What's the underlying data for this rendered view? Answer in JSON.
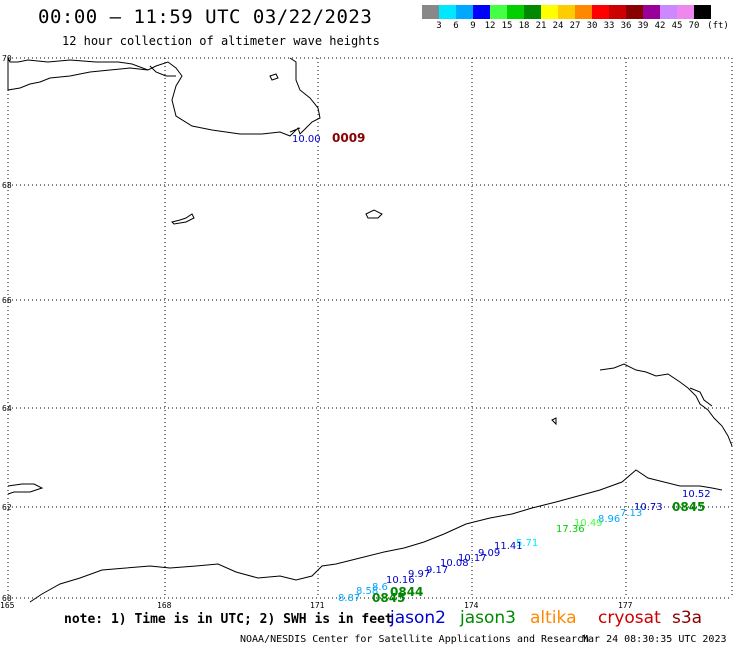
{
  "header": {
    "title": "00:00 – 11:59 UTC 03/22/2023",
    "subtitle": "12 hour collection of altimeter wave heights"
  },
  "legend": {
    "unit": "(ft)",
    "bins": [
      {
        "label": "3",
        "color": "#888888"
      },
      {
        "label": "6",
        "color": "#00e8ff"
      },
      {
        "label": "9",
        "color": "#00a8ff"
      },
      {
        "label": "12",
        "color": "#0000ff"
      },
      {
        "label": "15",
        "color": "#44ff44"
      },
      {
        "label": "18",
        "color": "#00d000"
      },
      {
        "label": "21",
        "color": "#008800"
      },
      {
        "label": "24",
        "color": "#ffff00"
      },
      {
        "label": "27",
        "color": "#ffcc00"
      },
      {
        "label": "30",
        "color": "#ff8800"
      },
      {
        "label": "33",
        "color": "#ff0000"
      },
      {
        "label": "36",
        "color": "#cc0000"
      },
      {
        "label": "39",
        "color": "#880000"
      },
      {
        "label": "42",
        "color": "#990099"
      },
      {
        "label": "45",
        "color": "#cc88ff"
      },
      {
        "label": "70",
        "color": "#ee88ee"
      },
      {
        "label": "",
        "color": "#000000"
      }
    ]
  },
  "map": {
    "lat_labels": [
      "70",
      "68",
      "66",
      "64",
      "62",
      "60"
    ],
    "lon_labels": [
      "165",
      "168",
      "171",
      "174",
      "177"
    ],
    "observations": [
      {
        "text": "10.00",
        "color": "#0000cc"
      },
      {
        "text": "0009",
        "color": "#880000"
      },
      {
        "text": "10.52",
        "color": "#0000cc"
      },
      {
        "text": "0845",
        "color": "#008800"
      },
      {
        "text": "10.73",
        "color": "#0000cc"
      },
      {
        "text": "7.13",
        "color": "#00a8ff"
      },
      {
        "text": "8.96",
        "color": "#00a8ff"
      },
      {
        "text": "10.49",
        "color": "#44ff44"
      },
      {
        "text": "17.36",
        "color": "#00d000"
      },
      {
        "text": "5.71",
        "color": "#00e8ff"
      },
      {
        "text": "11.41",
        "color": "#0000cc"
      },
      {
        "text": "9.09",
        "color": "#0000cc"
      },
      {
        "text": "10.17",
        "color": "#0000cc"
      },
      {
        "text": "10.08",
        "color": "#0000cc"
      },
      {
        "text": "9.17",
        "color": "#0000cc"
      },
      {
        "text": "9.97",
        "color": "#0000cc"
      },
      {
        "text": "10.16",
        "color": "#0000cc"
      },
      {
        "text": "8.6",
        "color": "#00a8ff"
      },
      {
        "text": "8.58",
        "color": "#00a8ff"
      },
      {
        "text": "8.87",
        "color": "#00a8ff"
      },
      {
        "text": "0844",
        "color": "#008800"
      },
      {
        "text": "0845",
        "color": "#008800"
      }
    ]
  },
  "footer": {
    "note": "note: 1) Time is in UTC; 2) SWH is in feet",
    "missions": [
      {
        "name": "jason2",
        "color": "#0000cc"
      },
      {
        "name": "jason3",
        "color": "#008800"
      },
      {
        "name": "altika",
        "color": "#ff8800"
      },
      {
        "name": "cryosat",
        "color": "#cc0000"
      },
      {
        "name": "s3a",
        "color": "#880000"
      }
    ],
    "credit": "NOAA/NESDIS Center for Satellite Applications and Research",
    "generated": "Mar 24 08:30:35 UTC 2023"
  }
}
